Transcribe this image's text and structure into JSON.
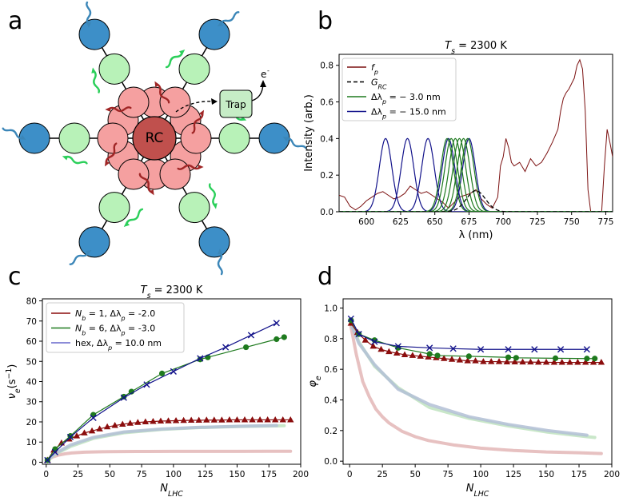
{
  "panel_labels": [
    "a",
    "b",
    "c",
    "d"
  ],
  "colors": {
    "lhc_dark": "#3d8fc8",
    "lhc_light": "#b8f2b8",
    "rc_core": "#c0504d",
    "rc_ring": "#f5a0a0",
    "trap": "#c6edc6",
    "fp": "#7b1010",
    "green": "#1e7a1e",
    "navy": "#12128a",
    "red_series": "#8b0d0d",
    "hex": "#6666cc"
  },
  "diagram": {
    "rc_label": "RC",
    "trap_label": "Trap",
    "electron_label": "e",
    "electron_sup": "-"
  },
  "chart_data": [
    {
      "panel": "b",
      "type": "line",
      "title_prefix": "T",
      "title_sub": "s",
      "title_value": " = 2300 K",
      "xlabel": "λ (nm)",
      "ylabel": "Intensity (arb.)",
      "xlim": [
        580,
        780
      ],
      "ylim": [
        0,
        0.86
      ],
      "xticks": [
        600,
        625,
        650,
        675,
        700,
        725,
        750,
        775
      ],
      "yticks": [
        0.0,
        0.2,
        0.4,
        0.6,
        0.8
      ],
      "legend": {
        "position": "top-left",
        "entries": [
          {
            "name": "f",
            "sub": "p",
            "style": "solid",
            "color": "#7b1010"
          },
          {
            "name": "G",
            "sub": "RC",
            "style": "dashed",
            "color": "#000000"
          },
          {
            "name": "Δλ",
            "sub": "p",
            "tail": " = − 3.0 nm",
            "style": "solid",
            "color": "#1e7a1e"
          },
          {
            "name": "Δλ",
            "sub": "p",
            "tail": " = − 15.0 nm",
            "style": "solid",
            "color": "#12128a"
          }
        ]
      },
      "fp_series": {
        "x": [
          580,
          584,
          588,
          592,
          596,
          600,
          604,
          608,
          612,
          616,
          620,
          624,
          628,
          632,
          636,
          640,
          644,
          648,
          652,
          656,
          660,
          664,
          668,
          672,
          676,
          680,
          684,
          688,
          692,
          696,
          698,
          700,
          702,
          704,
          706,
          708,
          710,
          712,
          716,
          720,
          724,
          728,
          732,
          736,
          740,
          742,
          744,
          746,
          748,
          750,
          752,
          754,
          756,
          758,
          760,
          762,
          764,
          766,
          768,
          770,
          772,
          774,
          776,
          778,
          780
        ],
        "y": [
          0.09,
          0.08,
          0.03,
          0.01,
          0.03,
          0.06,
          0.08,
          0.1,
          0.11,
          0.09,
          0.07,
          0.08,
          0.1,
          0.14,
          0.12,
          0.1,
          0.11,
          0.09,
          0.07,
          0.05,
          0.02,
          0.05,
          0.08,
          0.09,
          0.1,
          0.12,
          0.07,
          0.04,
          0.02,
          0.08,
          0.25,
          0.3,
          0.4,
          0.35,
          0.27,
          0.25,
          0.26,
          0.27,
          0.22,
          0.29,
          0.25,
          0.27,
          0.32,
          0.38,
          0.45,
          0.55,
          0.62,
          0.65,
          0.67,
          0.7,
          0.73,
          0.8,
          0.83,
          0.78,
          0.55,
          0.12,
          0.0,
          0.0,
          0.0,
          0.0,
          0.0,
          0.25,
          0.45,
          0.38,
          0.3
        ]
      },
      "grc_series": {
        "center": 680,
        "sigma": 7.0,
        "amplitude": 0.115
      },
      "green_centers": [
        659,
        662,
        665,
        668,
        671,
        674
      ],
      "navy_centers": [
        614,
        630,
        645,
        660,
        675
      ],
      "gaussian_sigma": 4.6,
      "gaussian_amplitude": 0.4
    },
    {
      "panel": "c",
      "type": "line",
      "title_prefix": "T",
      "title_sub": "s",
      "title_value": " = 2300 K",
      "xlabel_main": "N",
      "xlabel_sub": "LHC",
      "ylabel_main": "ν",
      "ylabel_sub": "e",
      "ylabel_tail": "(s",
      "ylabel_sup": "−1",
      "ylabel_close": ")",
      "xlim": [
        -3,
        200
      ],
      "ylim": [
        -1,
        81
      ],
      "xticks": [
        0,
        25,
        50,
        75,
        100,
        125,
        150,
        175,
        200
      ],
      "yticks": [
        0,
        10,
        20,
        30,
        40,
        50,
        60,
        70,
        80
      ],
      "legend": {
        "position": "top-left",
        "entries": [
          {
            "text": "N",
            "sub": "b",
            "tail": " = 1, Δλ",
            "sub2": "p",
            "tail2": " = -2.0",
            "color": "#8b0d0d"
          },
          {
            "text": "N",
            "sub": "b",
            "tail": " = 6, Δλ",
            "sub2": "p",
            "tail2": " = -3.0",
            "color": "#1e7a1e"
          },
          {
            "text": "hex, Δλ",
            "sub": "p",
            "tail": " = 10.0 nm",
            "sub2": "",
            "tail2": "",
            "color": "#6666cc"
          }
        ]
      },
      "series": [
        {
          "name": "Nb=1",
          "marker": "triangle",
          "color": "#8b0d0d",
          "x": [
            1,
            6,
            12,
            18,
            24,
            30,
            36,
            42,
            48,
            54,
            60,
            66,
            72,
            78,
            84,
            90,
            96,
            102,
            108,
            114,
            120,
            126,
            132,
            138,
            144,
            150,
            156,
            162,
            168,
            174,
            180,
            186,
            192
          ],
          "y": [
            1.0,
            6.0,
            9.5,
            11.5,
            13.0,
            14.5,
            15.5,
            16.5,
            17.5,
            18.2,
            18.8,
            19.3,
            19.7,
            20.0,
            20.2,
            20.4,
            20.5,
            20.6,
            20.7,
            20.8,
            20.8,
            20.9,
            20.9,
            20.9,
            21.0,
            21.0,
            21.0,
            21.0,
            21.0,
            21.0,
            21.0,
            21.0,
            21.0
          ]
        },
        {
          "name": "Nb=6",
          "marker": "circle",
          "color": "#1e7a1e",
          "x": [
            1,
            7,
            19,
            37,
            61,
            67,
            91,
            121,
            127,
            157,
            181,
            187
          ],
          "y": [
            1.0,
            6.5,
            13.0,
            23.5,
            32.5,
            35.0,
            44.0,
            51.0,
            52.0,
            57.0,
            61.0,
            62.0
          ]
        },
        {
          "name": "hex",
          "marker": "x",
          "color": "#12128a",
          "x": [
            1,
            7,
            19,
            37,
            61,
            79,
            100,
            121,
            141,
            161,
            181
          ],
          "y": [
            1.0,
            5.0,
            12.5,
            22.0,
            32.0,
            38.5,
            45.0,
            51.5,
            57.0,
            63.0,
            69.0
          ]
        }
      ],
      "faint_series": [
        {
          "name": "bg-red",
          "color": "#e3b6b6",
          "x": [
            1,
            5,
            10,
            15,
            20,
            25,
            30,
            40,
            50,
            60,
            70,
            80,
            100,
            125,
            150,
            175,
            192
          ],
          "y": [
            1.0,
            2.6,
            3.6,
            4.2,
            4.6,
            4.8,
            5.0,
            5.15,
            5.25,
            5.3,
            5.35,
            5.35,
            5.4,
            5.4,
            5.4,
            5.45,
            5.45
          ]
        },
        {
          "name": "bg-green",
          "color": "#bfe3bf",
          "x": [
            1,
            7,
            19,
            37,
            61,
            91,
            121,
            151,
            181,
            187
          ],
          "y": [
            1.0,
            4.0,
            7.8,
            11.8,
            14.6,
            16.3,
            17.2,
            17.7,
            18.0,
            18.1
          ]
        },
        {
          "name": "bg-blue",
          "color": "#b3bfd6",
          "x": [
            1,
            7,
            19,
            37,
            61,
            91,
            121,
            151,
            181
          ],
          "y": [
            1.0,
            4.3,
            8.5,
            12.3,
            15.0,
            16.5,
            17.3,
            17.8,
            18.2
          ]
        }
      ]
    },
    {
      "panel": "d",
      "type": "line",
      "title_prefix": "",
      "xlabel_main": "N",
      "xlabel_sub": "LHC",
      "ylabel_main": "φ",
      "ylabel_sub": "e",
      "xlim": [
        -5,
        200
      ],
      "ylim": [
        -0.02,
        1.06
      ],
      "xticks": [
        0,
        25,
        50,
        75,
        100,
        125,
        150,
        175,
        200
      ],
      "yticks": [
        0.0,
        0.2,
        0.4,
        0.6,
        0.8,
        1.0
      ],
      "series": [
        {
          "name": "Nb=1",
          "marker": "triangle",
          "color": "#8b0d0d",
          "x": [
            1,
            6,
            12,
            18,
            24,
            30,
            36,
            42,
            48,
            54,
            60,
            66,
            72,
            78,
            84,
            90,
            96,
            102,
            108,
            114,
            120,
            126,
            132,
            138,
            144,
            150,
            156,
            162,
            168,
            174,
            180,
            186,
            192
          ],
          "y": [
            0.9,
            0.84,
            0.79,
            0.75,
            0.73,
            0.715,
            0.705,
            0.695,
            0.69,
            0.685,
            0.68,
            0.675,
            0.67,
            0.665,
            0.66,
            0.655,
            0.655,
            0.65,
            0.65,
            0.65,
            0.648,
            0.648,
            0.647,
            0.647,
            0.646,
            0.646,
            0.645,
            0.645,
            0.645,
            0.645,
            0.645,
            0.645,
            0.645
          ]
        },
        {
          "name": "Nb=6",
          "marker": "circle",
          "color": "#1e7a1e",
          "x": [
            1,
            7,
            19,
            37,
            61,
            67,
            91,
            121,
            127,
            157,
            181,
            187
          ],
          "y": [
            0.92,
            0.83,
            0.79,
            0.74,
            0.7,
            0.69,
            0.685,
            0.678,
            0.675,
            0.672,
            0.67,
            0.67
          ]
        },
        {
          "name": "hex",
          "marker": "x",
          "color": "#12128a",
          "x": [
            1,
            7,
            19,
            37,
            61,
            79,
            100,
            121,
            141,
            161,
            181
          ],
          "y": [
            0.93,
            0.83,
            0.78,
            0.75,
            0.74,
            0.735,
            0.73,
            0.73,
            0.73,
            0.73,
            0.73
          ]
        }
      ],
      "faint_series": [
        {
          "name": "bg-red",
          "color": "#e3b6b6",
          "x": [
            1,
            5,
            10,
            15,
            20,
            25,
            30,
            40,
            50,
            60,
            70,
            80,
            100,
            125,
            150,
            175,
            192
          ],
          "y": [
            0.88,
            0.7,
            0.52,
            0.42,
            0.34,
            0.29,
            0.25,
            0.195,
            0.16,
            0.135,
            0.12,
            0.105,
            0.085,
            0.07,
            0.06,
            0.055,
            0.05
          ]
        },
        {
          "name": "bg-green",
          "color": "#bfe3bf",
          "x": [
            1,
            7,
            19,
            37,
            61,
            91,
            121,
            151,
            181,
            187
          ],
          "y": [
            0.9,
            0.78,
            0.62,
            0.48,
            0.35,
            0.28,
            0.23,
            0.19,
            0.16,
            0.155
          ]
        },
        {
          "name": "bg-blue",
          "color": "#b3bfd6",
          "x": [
            1,
            7,
            19,
            37,
            61,
            91,
            121,
            151,
            181
          ],
          "y": [
            0.9,
            0.77,
            0.63,
            0.47,
            0.37,
            0.29,
            0.24,
            0.2,
            0.17
          ]
        }
      ]
    }
  ]
}
